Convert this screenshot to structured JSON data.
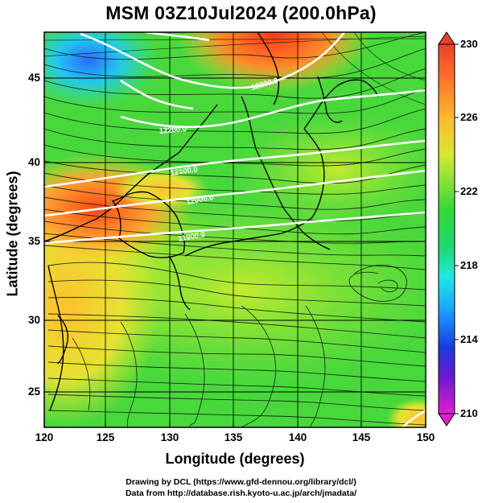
{
  "title": "MSM 03Z10Jul2024 (200.0hPa)",
  "x_axis": {
    "label": "Longitude (degrees)",
    "ticks": [
      "120",
      "125",
      "130",
      "135",
      "140",
      "145",
      "150"
    ]
  },
  "y_axis": {
    "label": "Latitude  (degrees)",
    "ticks": [
      "25",
      "30",
      "35",
      "40",
      "45"
    ]
  },
  "colorbar": {
    "ticks": [
      "230",
      "226",
      "222",
      "218",
      "214",
      "210"
    ],
    "min": 210,
    "max": 230
  },
  "contour_labels": [
    "12300.0",
    "12200.0",
    "12100.0",
    "12000.0",
    "11900.0"
  ],
  "credits": {
    "line1": "Drawing by DCL (https://www.gfd-dennou.org/library/dcl/)",
    "line2": "Data from http://database.rish.kyoto-u.ac.jp/arch/jmadata/"
  },
  "chart_data": {
    "type": "heatmap",
    "title": "MSM 03Z10Jul2024 (200.0hPa)",
    "xlabel": "Longitude (degrees)",
    "ylabel": "Latitude  (degrees)",
    "xlim": [
      120,
      150
    ],
    "ylim": [
      22.4,
      47.6
    ],
    "x_ticks": [
      120,
      125,
      130,
      135,
      140,
      145,
      150
    ],
    "y_ticks": [
      25,
      30,
      35,
      40,
      45
    ],
    "colorbar_range": [
      210,
      230
    ],
    "colorbar_ticks": [
      210,
      214,
      218,
      222,
      226,
      230
    ],
    "overlays": [
      "streamlines",
      "geopotential height contours (white)",
      "coastlines",
      "lat/lon grid"
    ]
  }
}
